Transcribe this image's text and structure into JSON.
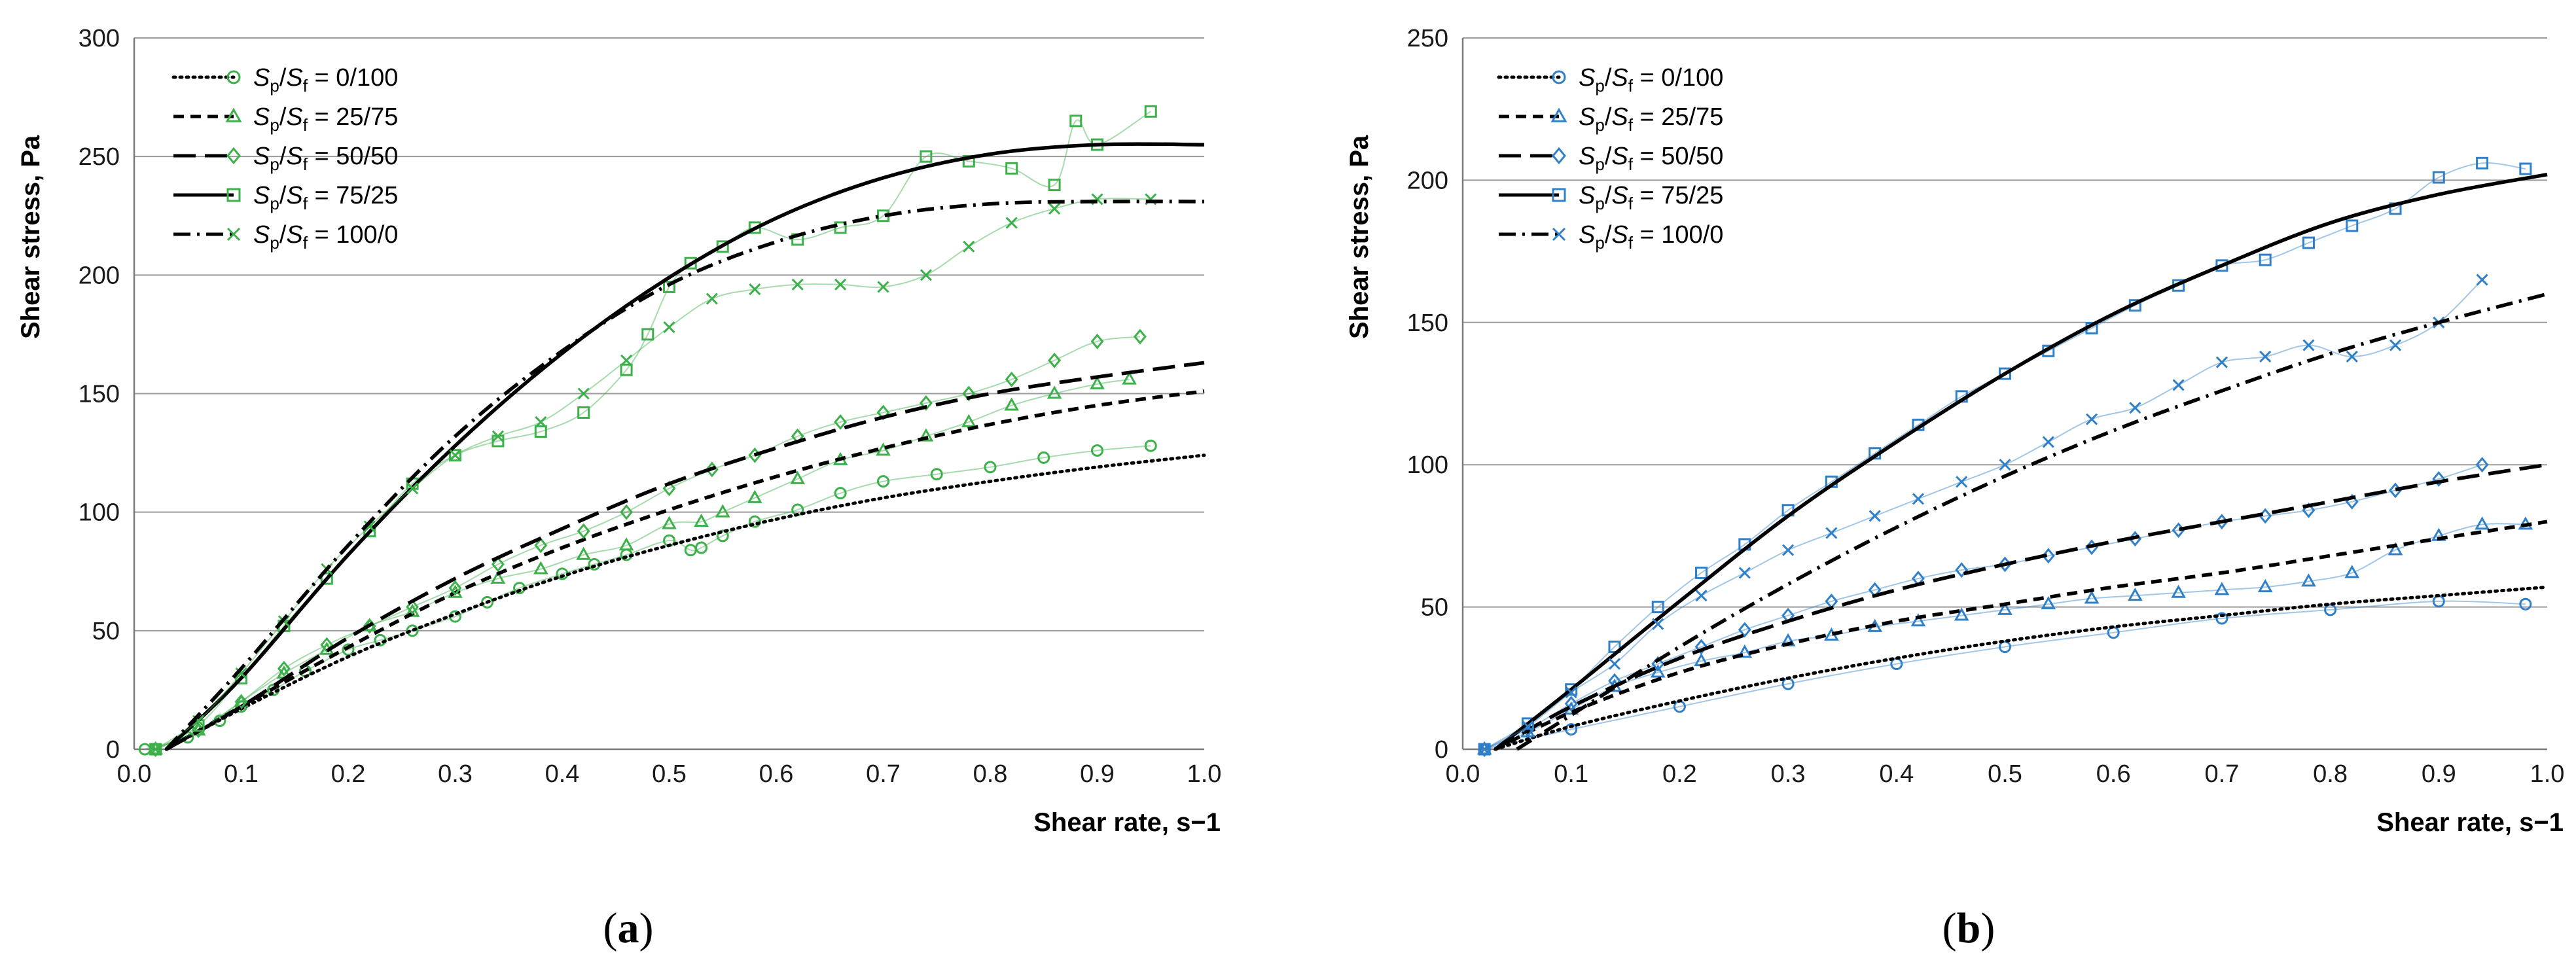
{
  "chart_data": [
    {
      "type": "line",
      "panel_label": "(a)",
      "panel_letter": "a",
      "xlabel": "Shear rate, s−1",
      "ylabel": "Shear stress, Pa",
      "xlim": [
        0,
        1
      ],
      "ylim": [
        0,
        300
      ],
      "xticks": [
        "0.0",
        "0.1",
        "0.2",
        "0.3",
        "0.4",
        "0.5",
        "0.6",
        "0.7",
        "0.8",
        "0.9",
        "1.0"
      ],
      "yticks": [
        "0",
        "50",
        "100",
        "150",
        "200",
        "250",
        "300"
      ],
      "grid": "horizontal",
      "legend_position": "top-left",
      "marker_color": "#3cb04a",
      "series": [
        {
          "name": "Sp/Sf = 0/100",
          "legend_value": " = 0/100",
          "marker": "circle",
          "dash": "dotted",
          "fit": {
            "x": [
              0.03,
              0.1,
              0.2,
              0.3,
              0.4,
              0.5,
              0.6,
              0.7,
              0.8,
              0.9,
              1.0
            ],
            "y": [
              0,
              17,
              39,
              57,
              73,
              86,
              97,
              106,
              113,
              119,
              124
            ]
          },
          "points": {
            "x": [
              0.01,
              0.05,
              0.08,
              0.1,
              0.13,
              0.16,
              0.2,
              0.23,
              0.26,
              0.3,
              0.33,
              0.36,
              0.4,
              0.43,
              0.46,
              0.5,
              0.52,
              0.53,
              0.55,
              0.58,
              0.62,
              0.66,
              0.7,
              0.75,
              0.8,
              0.85,
              0.9,
              0.95
            ],
            "y": [
              0,
              5,
              12,
              18,
              25,
              33,
              42,
              46,
              50,
              56,
              62,
              68,
              74,
              78,
              82,
              88,
              84,
              85,
              90,
              96,
              101,
              108,
              113,
              116,
              119,
              123,
              126,
              128
            ]
          }
        },
        {
          "name": "Sp/Sf = 25/75",
          "legend_value": " = 25/75",
          "marker": "triangle",
          "dash": "short-dash",
          "fit": {
            "x": [
              0.03,
              0.1,
              0.2,
              0.3,
              0.4,
              0.5,
              0.6,
              0.7,
              0.8,
              0.9,
              1.0
            ],
            "y": [
              0,
              18,
              43,
              66,
              85,
              101,
              115,
              127,
              137,
              145,
              151
            ]
          },
          "points": {
            "x": [
              0.02,
              0.06,
              0.1,
              0.14,
              0.18,
              0.22,
              0.26,
              0.3,
              0.34,
              0.38,
              0.42,
              0.46,
              0.5,
              0.53,
              0.55,
              0.58,
              0.62,
              0.66,
              0.7,
              0.74,
              0.78,
              0.82,
              0.86,
              0.9,
              0.93
            ],
            "y": [
              0,
              8,
              20,
              32,
              42,
              52,
              58,
              66,
              72,
              76,
              82,
              86,
              95,
              96,
              100,
              106,
              114,
              122,
              126,
              132,
              138,
              145,
              150,
              154,
              156
            ]
          }
        },
        {
          "name": "Sp/Sf = 50/50",
          "legend_value": " = 50/50",
          "marker": "diamond",
          "dash": "long-dash",
          "fit": {
            "x": [
              0.03,
              0.1,
              0.2,
              0.3,
              0.4,
              0.5,
              0.6,
              0.7,
              0.8,
              0.9,
              1.0
            ],
            "y": [
              0,
              18,
              47,
              72,
              93,
              112,
              127,
              140,
              150,
              157,
              163
            ]
          },
          "points": {
            "x": [
              0.02,
              0.06,
              0.1,
              0.14,
              0.18,
              0.22,
              0.26,
              0.3,
              0.34,
              0.38,
              0.42,
              0.46,
              0.5,
              0.54,
              0.58,
              0.62,
              0.66,
              0.7,
              0.74,
              0.78,
              0.82,
              0.86,
              0.9,
              0.94
            ],
            "y": [
              0,
              8,
              20,
              34,
              44,
              52,
              60,
              68,
              78,
              86,
              92,
              100,
              110,
              118,
              124,
              132,
              138,
              142,
              146,
              150,
              156,
              164,
              172,
              174
            ]
          }
        },
        {
          "name": "Sp/Sf = 75/25",
          "legend_value": " = 75/25",
          "marker": "square",
          "dash": "solid",
          "fit": {
            "x": [
              0.03,
              0.1,
              0.2,
              0.3,
              0.4,
              0.5,
              0.6,
              0.7,
              0.8,
              0.9,
              1.0
            ],
            "y": [
              0,
              30,
              82,
              128,
              167,
              199,
              224,
              241,
              251,
              255,
              255
            ]
          },
          "points": {
            "x": [
              0.02,
              0.06,
              0.1,
              0.14,
              0.18,
              0.22,
              0.26,
              0.3,
              0.34,
              0.38,
              0.42,
              0.46,
              0.48,
              0.5,
              0.52,
              0.55,
              0.58,
              0.62,
              0.66,
              0.7,
              0.74,
              0.78,
              0.82,
              0.86,
              0.88,
              0.9,
              0.95
            ],
            "y": [
              0,
              10,
              30,
              52,
              72,
              92,
              112,
              124,
              130,
              134,
              142,
              160,
              175,
              195,
              205,
              212,
              220,
              215,
              220,
              225,
              250,
              248,
              245,
              238,
              265,
              255,
              269
            ]
          }
        },
        {
          "name": "Sp/Sf = 100/0",
          "legend_value": " = 100/0",
          "marker": "cross",
          "dash": "dash-dot",
          "fit": {
            "x": [
              0.03,
              0.1,
              0.2,
              0.3,
              0.4,
              0.5,
              0.6,
              0.7,
              0.8,
              0.9,
              1.0
            ],
            "y": [
              0,
              34,
              86,
              132,
              168,
              196,
              214,
              225,
              230,
              231,
              231
            ]
          },
          "points": {
            "x": [
              0.02,
              0.06,
              0.1,
              0.14,
              0.18,
              0.22,
              0.26,
              0.3,
              0.34,
              0.38,
              0.42,
              0.46,
              0.5,
              0.54,
              0.58,
              0.62,
              0.66,
              0.7,
              0.74,
              0.78,
              0.82,
              0.86,
              0.9,
              0.95
            ],
            "y": [
              0,
              12,
              32,
              54,
              76,
              94,
              110,
              124,
              132,
              138,
              150,
              164,
              178,
              190,
              194,
              196,
              196,
              195,
              200,
              212,
              222,
              228,
              232,
              232
            ]
          }
        }
      ]
    },
    {
      "type": "line",
      "panel_label": "(b)",
      "panel_letter": "b",
      "xlabel": "Shear rate, s−1",
      "ylabel": "Shear stress, Pa",
      "xlim": [
        0,
        1
      ],
      "ylim": [
        0,
        250
      ],
      "xticks": [
        "0.0",
        "0.1",
        "0.2",
        "0.3",
        "0.4",
        "0.5",
        "0.6",
        "0.7",
        "0.8",
        "0.9",
        "1.0"
      ],
      "yticks": [
        "0",
        "50",
        "100",
        "150",
        "200",
        "250"
      ],
      "grid": "horizontal",
      "legend_position": "top-left",
      "marker_color": "#2f80c8",
      "series": [
        {
          "name": "Sp/Sf = 0/100",
          "legend_value": " = 0/100",
          "marker": "circle",
          "dash": "dotted",
          "fit": {
            "x": [
              0.03,
              0.1,
              0.2,
              0.3,
              0.4,
              0.5,
              0.6,
              0.7,
              0.8,
              0.9,
              1.0
            ],
            "y": [
              0,
              8,
              17,
              25,
              32,
              38,
              43,
              47,
              51,
              54,
              57
            ]
          },
          "points": {
            "x": [
              0.02,
              0.1,
              0.2,
              0.3,
              0.4,
              0.5,
              0.6,
              0.7,
              0.8,
              0.9,
              0.98
            ],
            "y": [
              0,
              7,
              15,
              23,
              30,
              36,
              41,
              46,
              49,
              52,
              51
            ]
          }
        },
        {
          "name": "Sp/Sf = 25/75",
          "legend_value": " = 25/75",
          "marker": "triangle",
          "dash": "short-dash",
          "fit": {
            "x": [
              0.03,
              0.1,
              0.2,
              0.3,
              0.4,
              0.5,
              0.6,
              0.7,
              0.8,
              0.9,
              1.0
            ],
            "y": [
              0,
              13,
              27,
              37,
              45,
              51,
              57,
              62,
              68,
              74,
              80
            ]
          },
          "points": {
            "x": [
              0.02,
              0.06,
              0.1,
              0.14,
              0.18,
              0.22,
              0.26,
              0.3,
              0.34,
              0.38,
              0.42,
              0.46,
              0.5,
              0.54,
              0.58,
              0.62,
              0.66,
              0.7,
              0.74,
              0.78,
              0.82,
              0.86,
              0.9,
              0.94,
              0.98
            ],
            "y": [
              0,
              6,
              14,
              22,
              27,
              31,
              34,
              38,
              40,
              43,
              45,
              47,
              49,
              51,
              53,
              54,
              55,
              56,
              57,
              59,
              62,
              70,
              75,
              79,
              79
            ]
          }
        },
        {
          "name": "Sp/Sf = 50/50",
          "legend_value": " = 50/50",
          "marker": "diamond",
          "dash": "long-dash",
          "fit": {
            "x": [
              0.03,
              0.1,
              0.2,
              0.3,
              0.4,
              0.5,
              0.6,
              0.7,
              0.8,
              0.9,
              1.0
            ],
            "y": [
              0,
              15,
              32,
              45,
              56,
              65,
              73,
              80,
              87,
              94,
              100
            ]
          },
          "points": {
            "x": [
              0.02,
              0.06,
              0.1,
              0.14,
              0.18,
              0.22,
              0.26,
              0.3,
              0.34,
              0.38,
              0.42,
              0.46,
              0.5,
              0.54,
              0.58,
              0.62,
              0.66,
              0.7,
              0.74,
              0.78,
              0.82,
              0.86,
              0.9,
              0.94
            ],
            "y": [
              0,
              7,
              16,
              24,
              30,
              36,
              42,
              47,
              52,
              56,
              60,
              63,
              65,
              68,
              71,
              74,
              77,
              80,
              82,
              84,
              87,
              91,
              95,
              100
            ]
          }
        },
        {
          "name": "Sp/Sf = 75/25",
          "legend_value": " = 75/25",
          "marker": "square",
          "dash": "solid",
          "fit": {
            "x": [
              0.03,
              0.1,
              0.2,
              0.3,
              0.4,
              0.5,
              0.6,
              0.7,
              0.8,
              0.9,
              1.0
            ],
            "y": [
              0,
              21,
              52,
              82,
              108,
              132,
              153,
              170,
              185,
              195,
              202
            ]
          },
          "points": {
            "x": [
              0.02,
              0.06,
              0.1,
              0.14,
              0.18,
              0.22,
              0.26,
              0.3,
              0.34,
              0.38,
              0.42,
              0.46,
              0.5,
              0.54,
              0.58,
              0.62,
              0.66,
              0.7,
              0.74,
              0.78,
              0.82,
              0.86,
              0.9,
              0.94,
              0.98
            ],
            "y": [
              0,
              9,
              21,
              36,
              50,
              62,
              72,
              84,
              94,
              104,
              114,
              124,
              132,
              140,
              148,
              156,
              163,
              170,
              172,
              178,
              184,
              190,
              201,
              206,
              204
            ]
          }
        },
        {
          "name": "Sp/Sf = 100/0",
          "legend_value": " = 100/0",
          "marker": "cross",
          "dash": "dash-dot",
          "fit": {
            "x": [
              0.05,
              0.1,
              0.2,
              0.3,
              0.4,
              0.5,
              0.6,
              0.7,
              0.8,
              0.9,
              1.0
            ],
            "y": [
              0,
              12,
              36,
              58,
              78,
              96,
              112,
              126,
              139,
              150,
              160
            ]
          },
          "points": {
            "x": [
              0.02,
              0.06,
              0.1,
              0.14,
              0.18,
              0.22,
              0.26,
              0.3,
              0.34,
              0.38,
              0.42,
              0.46,
              0.5,
              0.54,
              0.58,
              0.62,
              0.66,
              0.7,
              0.74,
              0.78,
              0.82,
              0.86,
              0.9,
              0.94
            ],
            "y": [
              0,
              8,
              20,
              30,
              44,
              54,
              62,
              70,
              76,
              82,
              88,
              94,
              100,
              108,
              116,
              120,
              128,
              136,
              138,
              142,
              138,
              142,
              150,
              165
            ]
          }
        }
      ]
    }
  ]
}
